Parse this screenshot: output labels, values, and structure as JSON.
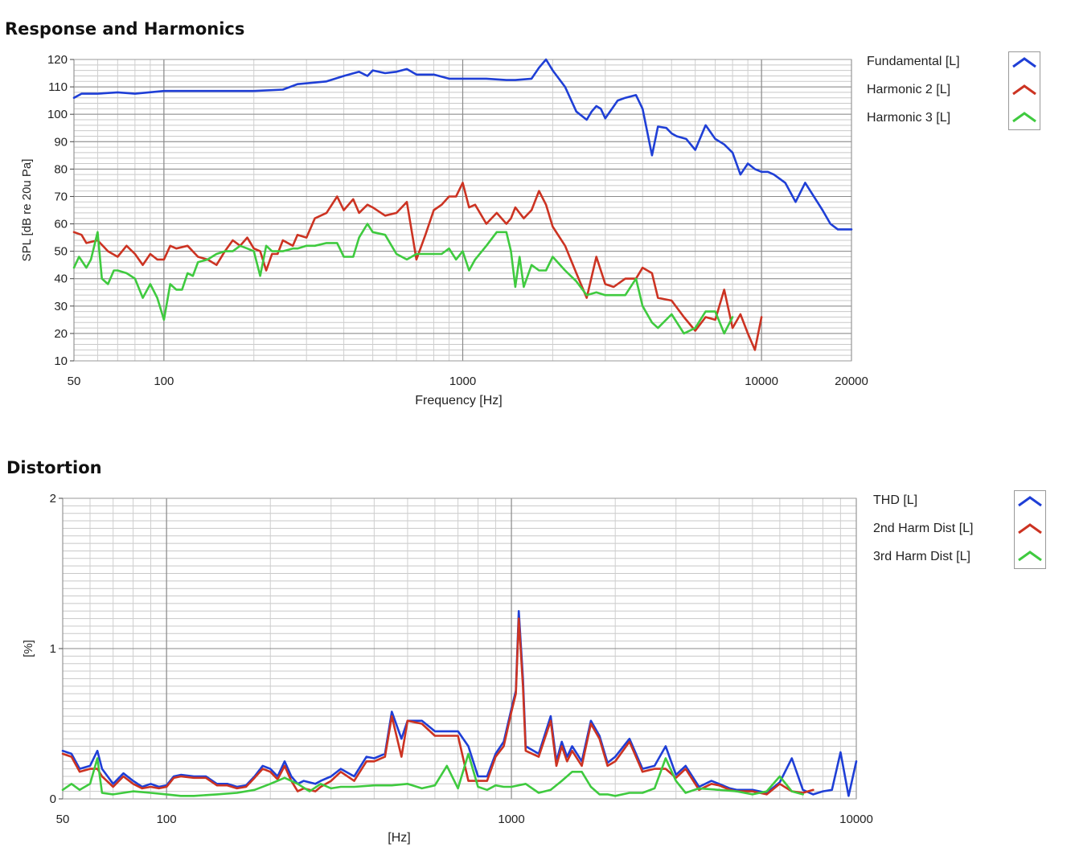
{
  "chart_data": [
    {
      "type": "line",
      "title": "Response and Harmonics",
      "xlabel": "Frequency [Hz]",
      "ylabel": "SPL [dB re 20u Pa]",
      "xscale": "log",
      "xlim": [
        50,
        20000
      ],
      "ylim": [
        10,
        120
      ],
      "xticks": [
        50,
        100,
        1000,
        10000,
        20000
      ],
      "yticks": [
        10,
        20,
        30,
        40,
        50,
        60,
        70,
        80,
        90,
        100,
        110,
        120
      ],
      "grid": true,
      "legend": "right",
      "series": [
        {
          "name": "Fundamental [L]",
          "color": "#1f3fd6",
          "x": [
            50,
            53,
            60,
            70,
            80,
            100,
            150,
            200,
            250,
            280,
            350,
            400,
            450,
            480,
            500,
            550,
            600,
            650,
            700,
            800,
            900,
            1000,
            1200,
            1400,
            1500,
            1700,
            1800,
            1900,
            2000,
            2200,
            2400,
            2600,
            2700,
            2800,
            2900,
            3000,
            3300,
            3500,
            3800,
            4000,
            4300,
            4500,
            4800,
            5000,
            5200,
            5600,
            6000,
            6500,
            7000,
            7500,
            8000,
            8500,
            9000,
            9500,
            10000,
            10500,
            11000,
            12000,
            13000,
            14000,
            16000,
            17000,
            18000,
            19000,
            20000
          ],
          "y": [
            106,
            107.5,
            107.5,
            108,
            107.5,
            108.5,
            108.5,
            108.5,
            109,
            111,
            112,
            114,
            115.5,
            114,
            116,
            115,
            115.5,
            116.5,
            114.5,
            114.5,
            113,
            113,
            113,
            112.5,
            112.5,
            113,
            117,
            120,
            116,
            110,
            101,
            98,
            101,
            103,
            102,
            98.5,
            105,
            106,
            107,
            102,
            85,
            95.5,
            95,
            93,
            92,
            91,
            87,
            96,
            91,
            89,
            86,
            78,
            82,
            80,
            79,
            79,
            78,
            75,
            68,
            75,
            65,
            60,
            58,
            58,
            58
          ]
        },
        {
          "name": "Harmonic 2 [L]",
          "color": "#cc3322",
          "x": [
            50,
            53,
            55,
            60,
            65,
            70,
            75,
            80,
            85,
            90,
            95,
            100,
            105,
            110,
            120,
            130,
            140,
            150,
            160,
            170,
            180,
            190,
            200,
            210,
            220,
            230,
            240,
            250,
            270,
            280,
            300,
            320,
            350,
            380,
            400,
            430,
            450,
            480,
            500,
            550,
            600,
            650,
            700,
            750,
            800,
            850,
            900,
            950,
            1000,
            1050,
            1100,
            1200,
            1300,
            1400,
            1450,
            1500,
            1600,
            1700,
            1800,
            1900,
            2000,
            2200,
            2400,
            2600,
            2800,
            3000,
            3200,
            3500,
            3800,
            4000,
            4300,
            4500,
            5000,
            5500,
            6000,
            6500,
            7000,
            7500,
            8000,
            8500,
            9000,
            9500,
            10000
          ],
          "y": [
            57,
            56,
            53,
            54,
            50,
            48,
            52,
            49,
            45,
            49,
            47,
            47,
            52,
            51,
            52,
            48,
            47,
            45,
            50,
            54,
            52,
            55,
            51,
            50,
            43,
            49,
            49,
            54,
            52,
            56,
            55,
            62,
            64,
            70,
            65,
            69,
            64,
            67,
            66,
            63,
            64,
            68,
            47,
            56,
            65,
            67,
            70,
            70,
            75,
            66,
            67,
            60,
            64,
            60,
            62,
            66,
            62,
            65,
            72,
            67,
            59,
            52,
            42,
            33,
            48,
            38,
            37,
            40,
            40,
            44,
            42,
            33,
            32,
            26,
            21,
            26,
            25,
            36,
            22,
            27,
            20,
            14,
            26
          ]
        },
        {
          "name": "Harmonic 3 [L]",
          "color": "#3fca3f",
          "x": [
            50,
            52,
            55,
            57,
            60,
            62,
            65,
            68,
            70,
            75,
            80,
            85,
            90,
            95,
            100,
            105,
            110,
            115,
            120,
            125,
            130,
            140,
            150,
            160,
            170,
            180,
            190,
            200,
            210,
            220,
            230,
            240,
            250,
            270,
            280,
            300,
            320,
            350,
            380,
            400,
            430,
            450,
            480,
            500,
            550,
            600,
            650,
            700,
            750,
            800,
            850,
            900,
            950,
            1000,
            1050,
            1100,
            1200,
            1300,
            1400,
            1450,
            1500,
            1550,
            1600,
            1700,
            1800,
            1900,
            2000,
            2200,
            2400,
            2600,
            2800,
            3000,
            3200,
            3500,
            3800,
            4000,
            4300,
            4500,
            5000,
            5500,
            6000,
            6500,
            7000,
            7500,
            8000
          ],
          "y": [
            44,
            48,
            44,
            47,
            57,
            40,
            38,
            43,
            43,
            42,
            40,
            33,
            38,
            33,
            25,
            38,
            36,
            36,
            42,
            41,
            46,
            47,
            49,
            50,
            50,
            52,
            51,
            50,
            41,
            52,
            50,
            50,
            50,
            51,
            51,
            52,
            52,
            53,
            53,
            48,
            48,
            55,
            60,
            57,
            56,
            49,
            47,
            49,
            49,
            49,
            49,
            51,
            47,
            50,
            43,
            47,
            52,
            57,
            57,
            50,
            37,
            48,
            37,
            45,
            43,
            43,
            48,
            43,
            39,
            34,
            35,
            34,
            34,
            34,
            40,
            30,
            24,
            22,
            27,
            20,
            22,
            28,
            28,
            20,
            26
          ]
        }
      ]
    },
    {
      "type": "line",
      "title": "Distortion",
      "xlabel": "[Hz]",
      "ylabel": "[%]",
      "xscale": "log",
      "xlim": [
        50,
        10000
      ],
      "ylim": [
        0,
        2
      ],
      "xticks": [
        50,
        100,
        1000,
        10000
      ],
      "yticks": [
        0,
        1,
        2
      ],
      "grid": true,
      "legend": "right",
      "series": [
        {
          "name": "THD [L]",
          "color": "#1f3fd6",
          "x": [
            50,
            53,
            56,
            60,
            63,
            65,
            70,
            75,
            80,
            85,
            90,
            95,
            100,
            105,
            110,
            120,
            130,
            140,
            150,
            160,
            170,
            180,
            190,
            200,
            210,
            220,
            230,
            240,
            250,
            270,
            280,
            300,
            320,
            350,
            380,
            400,
            430,
            450,
            480,
            500,
            550,
            600,
            650,
            700,
            750,
            800,
            850,
            900,
            950,
            1000,
            1030,
            1050,
            1080,
            1100,
            1200,
            1300,
            1350,
            1400,
            1450,
            1500,
            1600,
            1700,
            1800,
            1900,
            2000,
            2200,
            2400,
            2600,
            2800,
            3000,
            3200,
            3500,
            3800,
            4000,
            4300,
            4500,
            5000,
            5500,
            6000,
            6500,
            7000,
            7500,
            8000,
            8500,
            9000,
            9500,
            10000
          ],
          "y": [
            0.32,
            0.3,
            0.2,
            0.22,
            0.32,
            0.2,
            0.1,
            0.17,
            0.12,
            0.08,
            0.1,
            0.08,
            0.09,
            0.15,
            0.16,
            0.15,
            0.15,
            0.1,
            0.1,
            0.08,
            0.09,
            0.15,
            0.22,
            0.2,
            0.15,
            0.25,
            0.15,
            0.1,
            0.12,
            0.1,
            0.12,
            0.15,
            0.2,
            0.15,
            0.28,
            0.27,
            0.3,
            0.58,
            0.4,
            0.52,
            0.52,
            0.45,
            0.45,
            0.45,
            0.35,
            0.15,
            0.15,
            0.3,
            0.38,
            0.6,
            0.72,
            1.25,
            0.8,
            0.35,
            0.3,
            0.55,
            0.25,
            0.38,
            0.28,
            0.35,
            0.25,
            0.52,
            0.42,
            0.24,
            0.28,
            0.4,
            0.2,
            0.22,
            0.35,
            0.16,
            0.22,
            0.08,
            0.12,
            0.1,
            0.07,
            0.06,
            0.06,
            0.04,
            0.11,
            0.27,
            0.06,
            0.03,
            0.05,
            0.06,
            0.31,
            0.02,
            0.25
          ]
        },
        {
          "name": "2nd Harm Dist [L]",
          "color": "#cc3322",
          "x": [
            50,
            53,
            56,
            60,
            63,
            65,
            70,
            75,
            80,
            85,
            90,
            95,
            100,
            105,
            110,
            120,
            130,
            140,
            150,
            160,
            170,
            180,
            190,
            200,
            210,
            220,
            230,
            240,
            250,
            270,
            280,
            300,
            320,
            350,
            380,
            400,
            430,
            450,
            480,
            500,
            550,
            600,
            650,
            700,
            750,
            800,
            850,
            900,
            950,
            1000,
            1030,
            1050,
            1080,
            1100,
            1200,
            1300,
            1350,
            1400,
            1450,
            1500,
            1600,
            1700,
            1800,
            1900,
            2000,
            2200,
            2400,
            2600,
            2800,
            3000,
            3200,
            3500,
            3800,
            4000,
            4300,
            4500,
            5000,
            5500,
            6000,
            6500,
            7000,
            7500
          ],
          "y": [
            0.3,
            0.28,
            0.18,
            0.2,
            0.2,
            0.15,
            0.08,
            0.15,
            0.1,
            0.07,
            0.08,
            0.07,
            0.08,
            0.14,
            0.15,
            0.14,
            0.14,
            0.09,
            0.09,
            0.07,
            0.08,
            0.14,
            0.2,
            0.18,
            0.13,
            0.22,
            0.12,
            0.05,
            0.07,
            0.05,
            0.08,
            0.12,
            0.18,
            0.12,
            0.25,
            0.25,
            0.28,
            0.55,
            0.28,
            0.52,
            0.5,
            0.42,
            0.42,
            0.42,
            0.12,
            0.12,
            0.12,
            0.28,
            0.35,
            0.58,
            0.7,
            1.2,
            0.75,
            0.32,
            0.28,
            0.52,
            0.22,
            0.35,
            0.25,
            0.32,
            0.22,
            0.5,
            0.4,
            0.22,
            0.25,
            0.38,
            0.18,
            0.2,
            0.2,
            0.14,
            0.2,
            0.06,
            0.1,
            0.09,
            0.06,
            0.05,
            0.05,
            0.03,
            0.1,
            0.05,
            0.04,
            0.06
          ]
        },
        {
          "name": "3rd Harm Dist [L]",
          "color": "#3fca3f",
          "x": [
            50,
            53,
            56,
            60,
            63,
            65,
            70,
            80,
            90,
            100,
            110,
            120,
            140,
            160,
            180,
            200,
            220,
            240,
            260,
            280,
            300,
            320,
            350,
            400,
            450,
            500,
            550,
            600,
            650,
            700,
            750,
            800,
            850,
            900,
            950,
            1000,
            1100,
            1200,
            1300,
            1400,
            1500,
            1600,
            1700,
            1800,
            1900,
            2000,
            2200,
            2400,
            2600,
            2800,
            3000,
            3200,
            3500,
            4000,
            4500,
            5000,
            5500,
            6000,
            6500,
            7000
          ],
          "y": [
            0.06,
            0.1,
            0.06,
            0.1,
            0.27,
            0.04,
            0.03,
            0.05,
            0.04,
            0.03,
            0.02,
            0.02,
            0.03,
            0.04,
            0.06,
            0.1,
            0.14,
            0.1,
            0.05,
            0.1,
            0.07,
            0.08,
            0.08,
            0.09,
            0.09,
            0.1,
            0.07,
            0.09,
            0.22,
            0.07,
            0.3,
            0.08,
            0.06,
            0.09,
            0.08,
            0.08,
            0.1,
            0.04,
            0.06,
            0.12,
            0.18,
            0.18,
            0.08,
            0.03,
            0.03,
            0.02,
            0.04,
            0.04,
            0.07,
            0.27,
            0.12,
            0.04,
            0.07,
            0.06,
            0.05,
            0.03,
            0.05,
            0.15,
            0.05,
            0.03
          ]
        }
      ]
    }
  ]
}
